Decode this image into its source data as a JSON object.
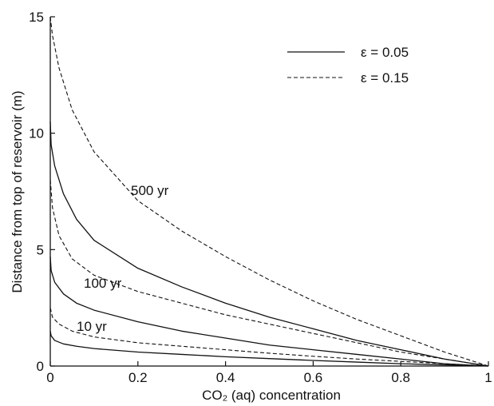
{
  "chart_data": {
    "type": "line",
    "xlabel": "CO₂ (aq) concentration",
    "ylabel": "Distance from top of reservoir (m)",
    "xlim": [
      0,
      1
    ],
    "ylim": [
      0,
      15
    ],
    "xticks": [
      0,
      0.2,
      0.4,
      0.6,
      0.8,
      1
    ],
    "xtick_labels": [
      "0",
      "0.2",
      "0.4",
      "0.6",
      "0.8",
      "1"
    ],
    "yticks": [
      0,
      5,
      10,
      15
    ],
    "ytick_labels": [
      "0",
      "5",
      "10",
      "15"
    ],
    "grid": false,
    "legend": {
      "position": "top-right",
      "entries": [
        {
          "label": "ε = 0.05",
          "style": "solid"
        },
        {
          "label": "ε = 0.15",
          "style": "dashed"
        }
      ]
    },
    "annotations": [
      "500 yr",
      "100 yr",
      "10 yr"
    ],
    "series": [
      {
        "time": "500 yr",
        "style": "dashed",
        "x": [
          0,
          0.005,
          0.02,
          0.05,
          0.1,
          0.2,
          0.3,
          0.4,
          0.5,
          0.6,
          0.7,
          0.8,
          0.9,
          1.0
        ],
        "y": [
          15.0,
          14.2,
          12.8,
          11.0,
          9.2,
          7.1,
          5.8,
          4.7,
          3.7,
          2.8,
          2.0,
          1.3,
          0.6,
          0.0
        ]
      },
      {
        "time": "500 yr",
        "style": "solid",
        "x": [
          0,
          0.002,
          0.01,
          0.03,
          0.06,
          0.1,
          0.2,
          0.3,
          0.4,
          0.5,
          0.6,
          0.7,
          0.8,
          0.9,
          1.0
        ],
        "y": [
          10.5,
          9.5,
          8.6,
          7.4,
          6.3,
          5.4,
          4.2,
          3.4,
          2.7,
          2.1,
          1.6,
          1.1,
          0.7,
          0.3,
          0.0
        ]
      },
      {
        "time": "100 yr",
        "style": "dashed",
        "x": [
          0,
          0.005,
          0.02,
          0.05,
          0.1,
          0.2,
          0.3,
          0.4,
          0.5,
          0.6,
          0.7,
          0.8,
          0.9,
          1.0
        ],
        "y": [
          8.0,
          6.8,
          5.6,
          4.6,
          3.9,
          3.2,
          2.7,
          2.2,
          1.8,
          1.4,
          1.0,
          0.6,
          0.3,
          0.0
        ]
      },
      {
        "time": "100 yr",
        "style": "solid",
        "x": [
          0,
          0.002,
          0.01,
          0.03,
          0.06,
          0.1,
          0.2,
          0.3,
          0.4,
          0.5,
          0.6,
          0.7,
          0.8,
          0.9,
          1.0
        ],
        "y": [
          4.7,
          4.1,
          3.6,
          3.1,
          2.7,
          2.4,
          1.9,
          1.5,
          1.2,
          0.9,
          0.7,
          0.5,
          0.3,
          0.1,
          0.0
        ]
      },
      {
        "time": "10 yr",
        "style": "dashed",
        "x": [
          0,
          0.005,
          0.02,
          0.05,
          0.1,
          0.2,
          0.3,
          0.4,
          0.5,
          0.6,
          0.7,
          0.8,
          0.9,
          1.0
        ],
        "y": [
          2.5,
          2.1,
          1.8,
          1.5,
          1.25,
          1.0,
          0.85,
          0.7,
          0.55,
          0.42,
          0.3,
          0.2,
          0.1,
          0.0
        ]
      },
      {
        "time": "10 yr",
        "style": "solid",
        "x": [
          0,
          0.002,
          0.01,
          0.03,
          0.06,
          0.1,
          0.2,
          0.3,
          0.4,
          0.5,
          0.6,
          0.7,
          0.8,
          0.9,
          1.0
        ],
        "y": [
          1.5,
          1.3,
          1.1,
          0.95,
          0.85,
          0.75,
          0.6,
          0.5,
          0.4,
          0.32,
          0.24,
          0.17,
          0.1,
          0.05,
          0.0
        ]
      }
    ]
  },
  "colors": {
    "line": "#111111",
    "background": "#ffffff"
  }
}
